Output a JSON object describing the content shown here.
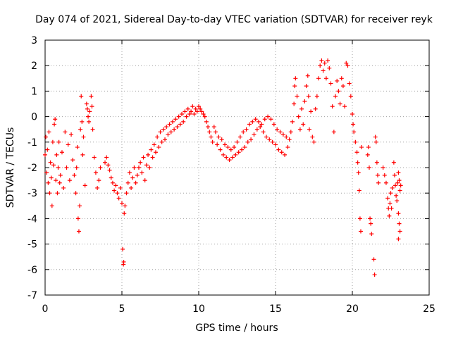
{
  "chart_data": {
    "type": "scatter",
    "title": "Day 074 of 2021, Sidereal Day-to-day VTEC variation (SDTVAR) for receiver reyk",
    "xlabel": "GPS time / hours",
    "ylabel": "SDTVAR / TECUs",
    "xlim": [
      0,
      25
    ],
    "ylim": [
      -7,
      3
    ],
    "xticks": [
      "0",
      "5",
      "10",
      "15",
      "20",
      "25"
    ],
    "yticks": [
      "-7",
      "-6",
      "-5",
      "-4",
      "-3",
      "-2",
      "-1",
      "0",
      "1",
      "2",
      "3"
    ],
    "grid": true,
    "marker": "+",
    "color": "#ff0000",
    "series": [
      {
        "name": "reyk",
        "points": [
          [
            0.0,
            -1.5
          ],
          [
            0.05,
            -0.8
          ],
          [
            0.1,
            -2.2
          ],
          [
            0.15,
            -1.3
          ],
          [
            0.2,
            -2.6
          ],
          [
            0.25,
            -0.6
          ],
          [
            0.3,
            -3.0
          ],
          [
            0.35,
            -1.8
          ],
          [
            0.4,
            -2.4
          ],
          [
            0.45,
            -3.5
          ],
          [
            0.5,
            -1.0
          ],
          [
            0.55,
            -1.9
          ],
          [
            0.6,
            -0.3
          ],
          [
            0.65,
            -0.1
          ],
          [
            0.7,
            -2.5
          ],
          [
            0.75,
            -1.5
          ],
          [
            0.8,
            -3.0
          ],
          [
            0.85,
            -2.0
          ],
          [
            0.9,
            -1.0
          ],
          [
            0.95,
            -2.6
          ],
          [
            1.0,
            -2.3
          ],
          [
            1.1,
            -1.4
          ],
          [
            1.2,
            -2.8
          ],
          [
            1.3,
            -0.6
          ],
          [
            1.4,
            -2.0
          ],
          [
            1.5,
            -1.1
          ],
          [
            1.6,
            -2.5
          ],
          [
            1.7,
            -0.7
          ],
          [
            1.8,
            -1.7
          ],
          [
            1.9,
            -2.3
          ],
          [
            2.0,
            -3.0
          ],
          [
            2.05,
            -2.0
          ],
          [
            2.1,
            -1.2
          ],
          [
            2.15,
            -4.0
          ],
          [
            2.2,
            -4.5
          ],
          [
            2.25,
            -3.5
          ],
          [
            2.3,
            -0.5
          ],
          [
            2.35,
            0.8
          ],
          [
            2.4,
            -0.2
          ],
          [
            2.45,
            -1.5
          ],
          [
            2.5,
            -0.8
          ],
          [
            2.6,
            -2.7
          ],
          [
            2.7,
            0.5
          ],
          [
            2.75,
            0.3
          ],
          [
            2.8,
            0.0
          ],
          [
            2.85,
            -0.2
          ],
          [
            2.9,
            0.2
          ],
          [
            3.0,
            0.8
          ],
          [
            3.05,
            0.4
          ],
          [
            3.1,
            -0.5
          ],
          [
            3.2,
            -1.6
          ],
          [
            3.3,
            -2.2
          ],
          [
            3.4,
            -2.8
          ],
          [
            3.5,
            -2.5
          ],
          [
            3.6,
            -2.0
          ],
          [
            3.9,
            -1.8
          ],
          [
            4.0,
            -1.6
          ],
          [
            4.1,
            -1.9
          ],
          [
            4.2,
            -2.1
          ],
          [
            4.3,
            -2.4
          ],
          [
            4.4,
            -2.6
          ],
          [
            4.5,
            -2.9
          ],
          [
            4.6,
            -2.7
          ],
          [
            4.7,
            -3.0
          ],
          [
            4.8,
            -3.2
          ],
          [
            4.9,
            -2.8
          ],
          [
            5.0,
            -3.4
          ],
          [
            5.05,
            -5.2
          ],
          [
            5.1,
            -5.8
          ],
          [
            5.12,
            -5.7
          ],
          [
            5.15,
            -3.8
          ],
          [
            5.2,
            -3.5
          ],
          [
            5.3,
            -3.0
          ],
          [
            5.4,
            -2.6
          ],
          [
            5.5,
            -2.2
          ],
          [
            5.6,
            -2.8
          ],
          [
            5.7,
            -2.4
          ],
          [
            5.8,
            -2.0
          ],
          [
            5.9,
            -2.6
          ],
          [
            6.0,
            -2.3
          ],
          [
            6.1,
            -2.0
          ],
          [
            6.2,
            -1.8
          ],
          [
            6.3,
            -2.2
          ],
          [
            6.4,
            -1.6
          ],
          [
            6.5,
            -2.5
          ],
          [
            6.6,
            -1.9
          ],
          [
            6.7,
            -1.5
          ],
          [
            6.8,
            -2.0
          ],
          [
            6.9,
            -1.3
          ],
          [
            7.0,
            -1.6
          ],
          [
            7.1,
            -1.1
          ],
          [
            7.2,
            -1.4
          ],
          [
            7.3,
            -0.8
          ],
          [
            7.4,
            -1.2
          ],
          [
            7.5,
            -0.6
          ],
          [
            7.6,
            -1.0
          ],
          [
            7.7,
            -0.5
          ],
          [
            7.8,
            -0.9
          ],
          [
            7.9,
            -0.4
          ],
          [
            8.0,
            -0.7
          ],
          [
            8.1,
            -0.3
          ],
          [
            8.2,
            -0.6
          ],
          [
            8.3,
            -0.2
          ],
          [
            8.4,
            -0.5
          ],
          [
            8.5,
            -0.1
          ],
          [
            8.6,
            -0.4
          ],
          [
            8.7,
            0.0
          ],
          [
            8.8,
            -0.3
          ],
          [
            8.9,
            0.1
          ],
          [
            9.0,
            -0.2
          ],
          [
            9.1,
            0.2
          ],
          [
            9.2,
            0.0
          ],
          [
            9.3,
            0.3
          ],
          [
            9.4,
            0.1
          ],
          [
            9.5,
            0.2
          ],
          [
            9.6,
            0.4
          ],
          [
            9.7,
            0.1
          ],
          [
            9.8,
            0.3
          ],
          [
            9.9,
            0.2
          ],
          [
            10.0,
            0.4
          ],
          [
            10.1,
            0.3
          ],
          [
            10.2,
            0.2
          ],
          [
            10.3,
            0.1
          ],
          [
            10.4,
            0.0
          ],
          [
            10.5,
            -0.2
          ],
          [
            10.6,
            -0.4
          ],
          [
            10.7,
            -0.6
          ],
          [
            10.8,
            -0.8
          ],
          [
            10.9,
            -1.0
          ],
          [
            11.0,
            -0.4
          ],
          [
            11.1,
            -0.6
          ],
          [
            11.2,
            -1.1
          ],
          [
            11.3,
            -0.8
          ],
          [
            11.4,
            -1.3
          ],
          [
            11.5,
            -0.9
          ],
          [
            11.6,
            -1.5
          ],
          [
            11.7,
            -1.1
          ],
          [
            11.8,
            -1.6
          ],
          [
            11.9,
            -1.2
          ],
          [
            12.0,
            -1.7
          ],
          [
            12.1,
            -1.3
          ],
          [
            12.2,
            -1.6
          ],
          [
            12.3,
            -1.2
          ],
          [
            12.4,
            -1.5
          ],
          [
            12.5,
            -1.0
          ],
          [
            12.6,
            -1.4
          ],
          [
            12.7,
            -0.8
          ],
          [
            12.8,
            -1.3
          ],
          [
            12.9,
            -0.6
          ],
          [
            13.0,
            -1.2
          ],
          [
            13.1,
            -0.5
          ],
          [
            13.2,
            -1.0
          ],
          [
            13.3,
            -0.3
          ],
          [
            13.4,
            -0.9
          ],
          [
            13.5,
            -0.2
          ],
          [
            13.6,
            -0.7
          ],
          [
            13.7,
            -0.1
          ],
          [
            13.8,
            -0.5
          ],
          [
            13.9,
            -0.2
          ],
          [
            14.0,
            -0.4
          ],
          [
            14.1,
            -0.3
          ],
          [
            14.2,
            -0.6
          ],
          [
            14.3,
            -0.1
          ],
          [
            14.4,
            -0.8
          ],
          [
            14.5,
            0.0
          ],
          [
            14.6,
            -0.9
          ],
          [
            14.7,
            -0.1
          ],
          [
            14.8,
            -1.0
          ],
          [
            14.9,
            -0.3
          ],
          [
            15.0,
            -1.1
          ],
          [
            15.1,
            -0.5
          ],
          [
            15.2,
            -1.3
          ],
          [
            15.3,
            -0.6
          ],
          [
            15.4,
            -1.4
          ],
          [
            15.5,
            -0.7
          ],
          [
            15.6,
            -1.5
          ],
          [
            15.7,
            -0.8
          ],
          [
            15.8,
            -1.2
          ],
          [
            15.9,
            -0.9
          ],
          [
            16.0,
            -0.6
          ],
          [
            16.1,
            -0.2
          ],
          [
            16.2,
            0.5
          ],
          [
            16.25,
            1.2
          ],
          [
            16.3,
            1.5
          ],
          [
            16.4,
            0.8
          ],
          [
            16.5,
            0.0
          ],
          [
            16.6,
            -0.5
          ],
          [
            16.7,
            0.3
          ],
          [
            16.8,
            -0.3
          ],
          [
            16.9,
            0.6
          ],
          [
            17.0,
            1.2
          ],
          [
            17.1,
            1.6
          ],
          [
            17.15,
            0.8
          ],
          [
            17.2,
            -0.5
          ],
          [
            17.3,
            0.2
          ],
          [
            17.4,
            -0.8
          ],
          [
            17.5,
            -1.0
          ],
          [
            17.6,
            0.3
          ],
          [
            17.7,
            0.8
          ],
          [
            17.8,
            1.5
          ],
          [
            17.9,
            2.0
          ],
          [
            18.0,
            2.2
          ],
          [
            18.1,
            1.8
          ],
          [
            18.2,
            2.1
          ],
          [
            18.3,
            1.5
          ],
          [
            18.4,
            2.2
          ],
          [
            18.5,
            1.9
          ],
          [
            18.6,
            1.3
          ],
          [
            18.7,
            0.4
          ],
          [
            18.8,
            -0.6
          ],
          [
            18.9,
            0.8
          ],
          [
            19.0,
            1.4
          ],
          [
            19.1,
            1.0
          ],
          [
            19.2,
            0.5
          ],
          [
            19.3,
            1.5
          ],
          [
            19.4,
            1.2
          ],
          [
            19.5,
            0.4
          ],
          [
            19.6,
            2.1
          ],
          [
            19.7,
            2.0
          ],
          [
            19.8,
            1.3
          ],
          [
            19.9,
            0.8
          ],
          [
            20.0,
            0.1
          ],
          [
            20.05,
            -0.3
          ],
          [
            20.1,
            -0.6
          ],
          [
            20.2,
            -1.0
          ],
          [
            20.3,
            -1.4
          ],
          [
            20.35,
            -1.8
          ],
          [
            20.4,
            -2.2
          ],
          [
            20.45,
            -2.9
          ],
          [
            20.5,
            -4.0
          ],
          [
            20.55,
            -4.5
          ],
          [
            20.6,
            -1.2
          ],
          [
            21.0,
            -1.5
          ],
          [
            21.05,
            -1.2
          ],
          [
            21.1,
            -2.0
          ],
          [
            21.15,
            -4.0
          ],
          [
            21.2,
            -4.2
          ],
          [
            21.25,
            -4.6
          ],
          [
            21.4,
            -5.6
          ],
          [
            21.45,
            -6.2
          ],
          [
            21.5,
            -0.8
          ],
          [
            21.55,
            -1.0
          ],
          [
            21.6,
            -1.8
          ],
          [
            21.65,
            -2.3
          ],
          [
            21.7,
            -2.6
          ],
          [
            22.0,
            -2.0
          ],
          [
            22.1,
            -2.3
          ],
          [
            22.2,
            -2.6
          ],
          [
            22.3,
            -3.2
          ],
          [
            22.35,
            -3.6
          ],
          [
            22.4,
            -3.9
          ],
          [
            22.45,
            -3.4
          ],
          [
            22.5,
            -3.0
          ],
          [
            22.55,
            -3.6
          ],
          [
            22.6,
            -2.8
          ],
          [
            22.7,
            -1.8
          ],
          [
            22.75,
            -2.3
          ],
          [
            22.8,
            -2.7
          ],
          [
            22.85,
            -3.1
          ],
          [
            22.9,
            -3.3
          ],
          [
            22.95,
            -2.6
          ],
          [
            23.0,
            -2.2
          ],
          [
            23.05,
            -2.5
          ],
          [
            23.1,
            -2.9
          ],
          [
            23.15,
            -2.7
          ],
          [
            23.0,
            -3.8
          ],
          [
            23.05,
            -4.2
          ],
          [
            23.1,
            -4.5
          ],
          [
            23.0,
            -4.8
          ]
        ]
      }
    ]
  }
}
